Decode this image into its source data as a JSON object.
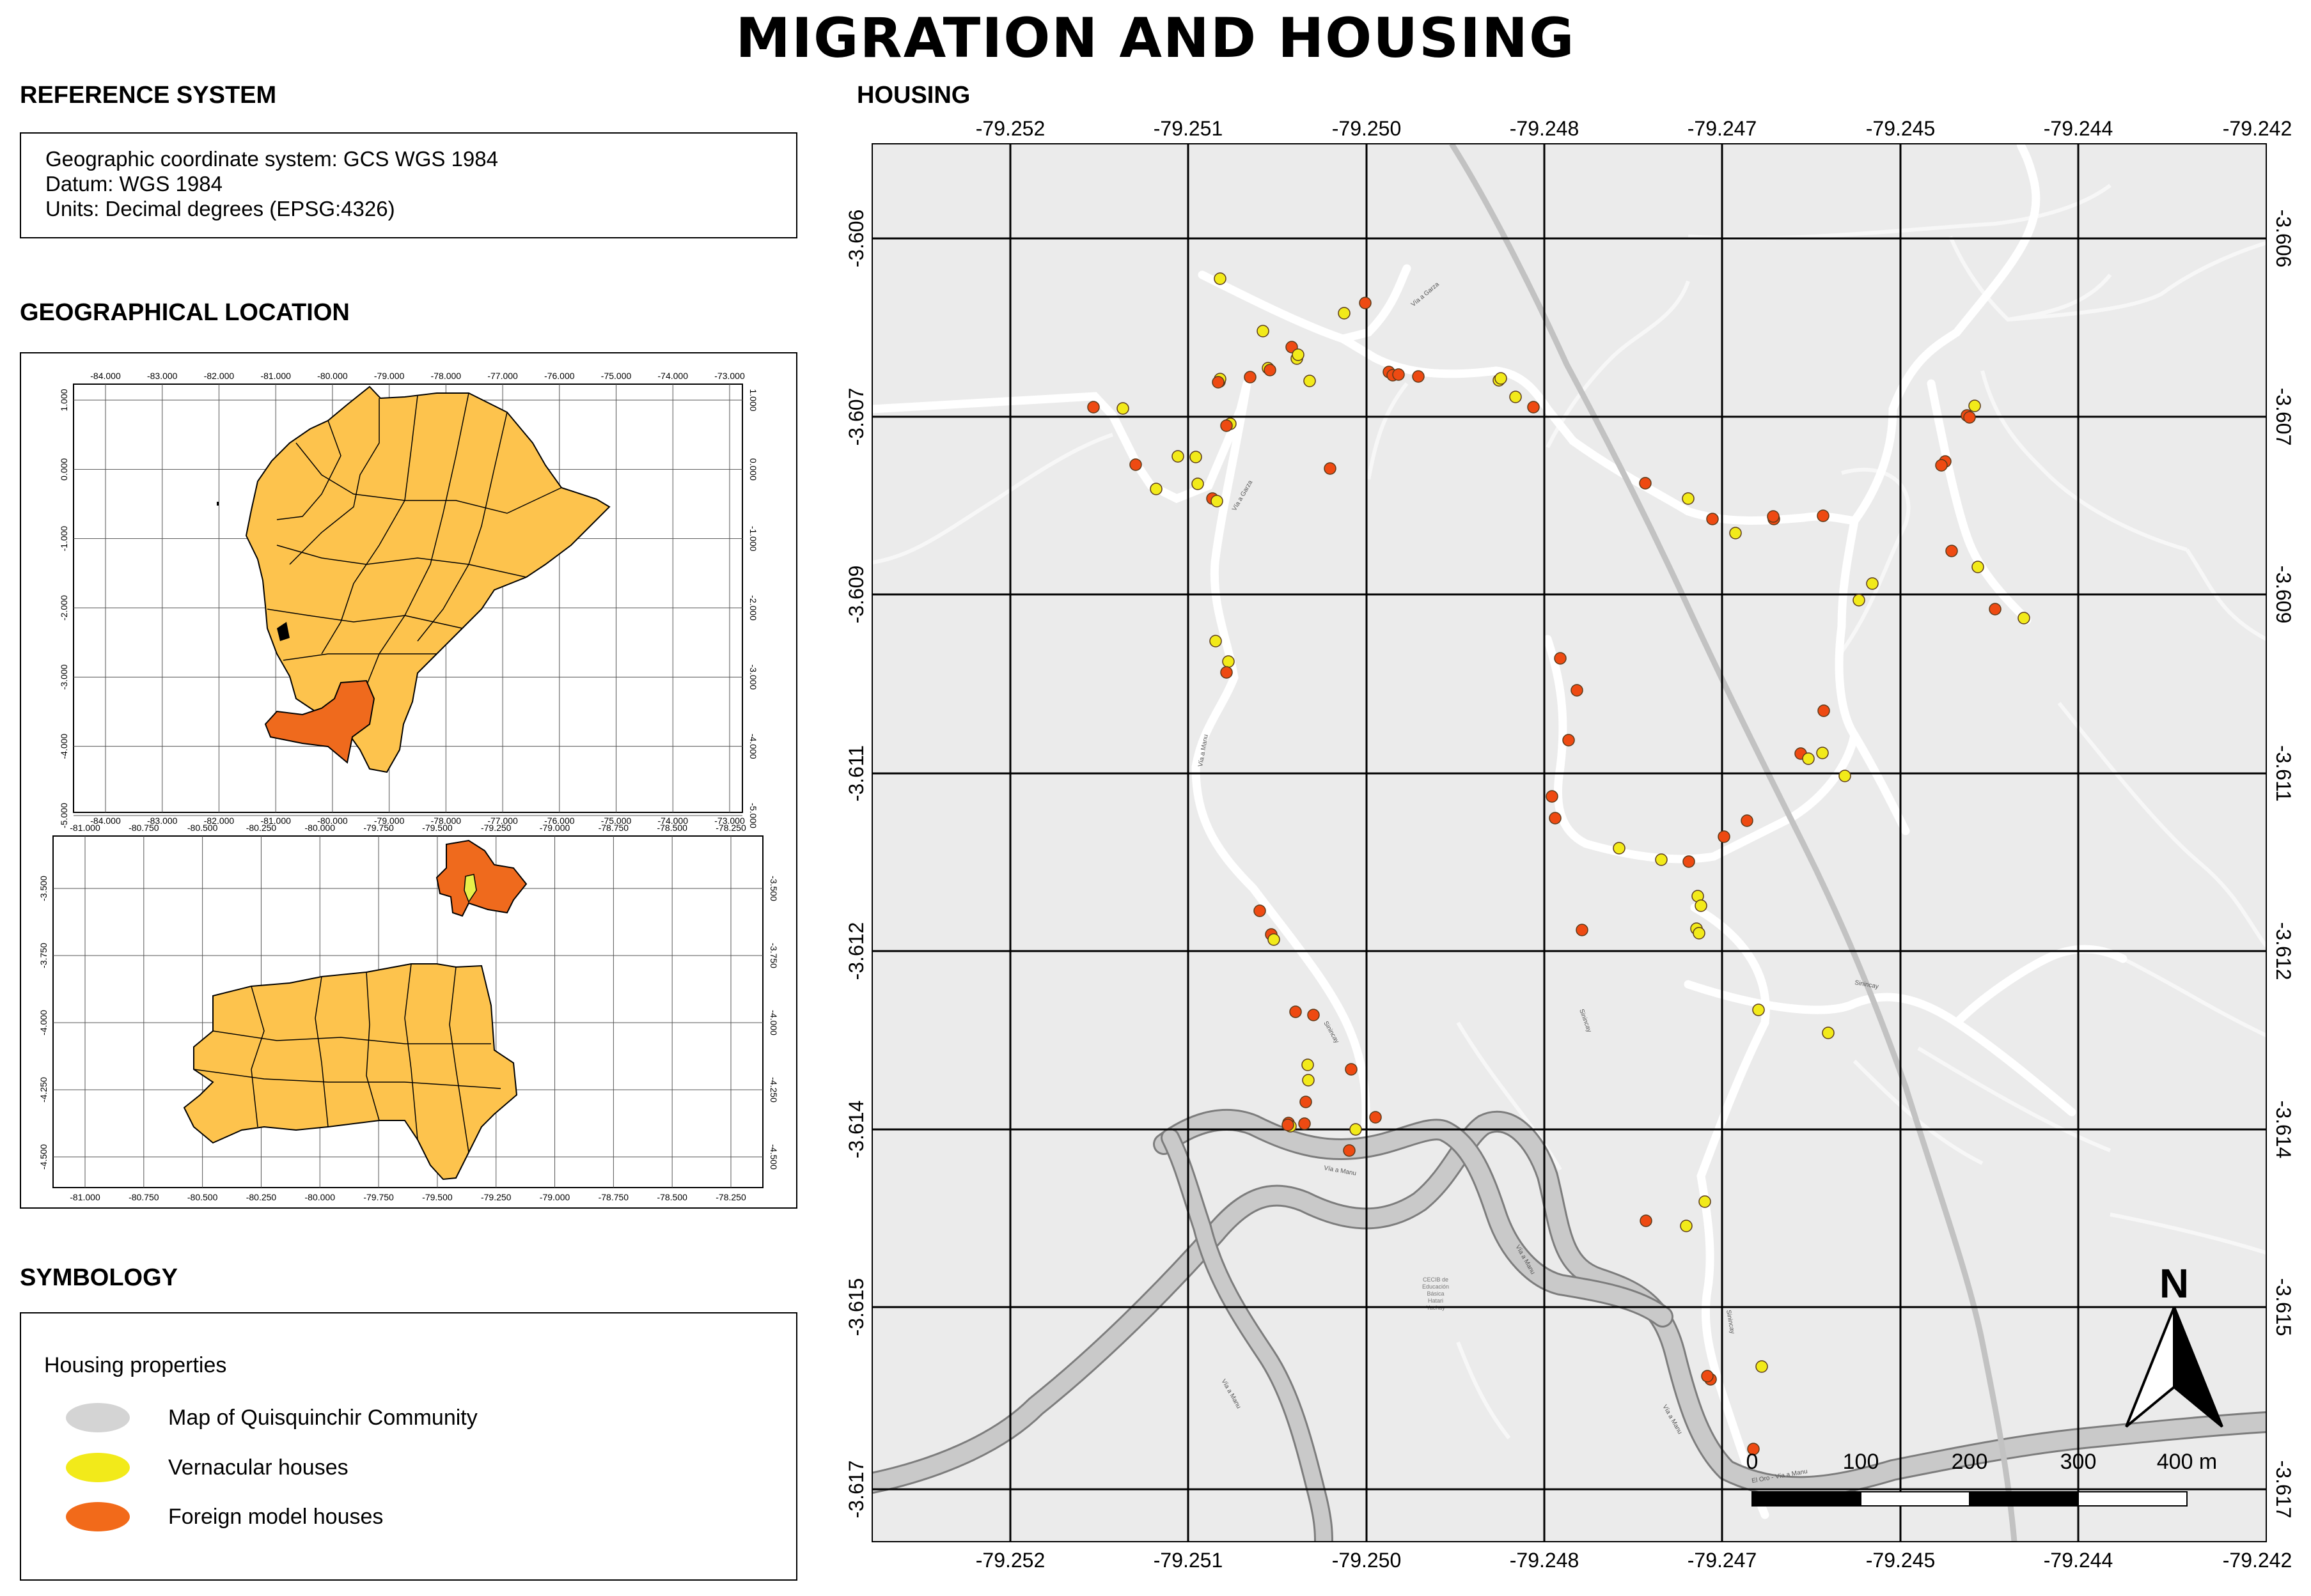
{
  "title": "MIGRATION AND HOUSING",
  "reference_system": {
    "heading": "REFERENCE SYSTEM",
    "lines": [
      "Geographic coordinate system: GCS WGS 1984",
      "Datum: WGS 1984",
      "Units: Decimal degrees (EPSG:4326)"
    ]
  },
  "geo_location": {
    "heading": "GEOGRAPHICAL LOCATION",
    "ecuador_x_ticks": [
      "-84.000",
      "-83.000",
      "-82.000",
      "-81.000",
      "-80.000",
      "-79.000",
      "-78.000",
      "-77.000",
      "-76.000",
      "-75.000",
      "-74.000",
      "-73.000"
    ],
    "ecuador_y_ticks": [
      "1.000",
      "0.000",
      "-1.000",
      "-2.000",
      "-3.000",
      "-4.000",
      "-5.000"
    ],
    "azuay_x_ticks": [
      "-81.000",
      "-80.750",
      "-80.500",
      "-80.250",
      "-80.000",
      "-79.750",
      "-79.500",
      "-79.250",
      "-79.000",
      "-78.750",
      "-78.500",
      "-78.250"
    ],
    "azuay_y_ticks": [
      "-3.500",
      "-3.750",
      "-4.000",
      "-4.250",
      "-4.500"
    ]
  },
  "symbology": {
    "heading": "SYMBOLOGY",
    "title": "Housing properties",
    "items": [
      {
        "label": "Map of Quisquinchir Community",
        "color": "#d4d4d4"
      },
      {
        "label": "Vernacular houses",
        "color": "#f2ea1a"
      },
      {
        "label": "Foreign model houses",
        "color": "#f26a1a"
      }
    ]
  },
  "housing_map": {
    "heading": "HOUSING",
    "x_ticks": [
      "-79.252",
      "-79.251",
      "-79.250",
      "-79.248",
      "-79.247",
      "-79.245",
      "-79.244",
      "-79.242"
    ],
    "y_ticks": [
      "-3.606",
      "-3.607",
      "-3.609",
      "-3.611",
      "-3.612",
      "-3.614",
      "-3.615",
      "-3.617"
    ],
    "north": "N",
    "scale_labels": [
      "0",
      "100",
      "200",
      "300",
      "400 m"
    ],
    "road_labels": [
      "Vía a Garza",
      "Vía a Garza",
      "Sinincay",
      "Sinincay",
      "Vía a Manu",
      "Vía a Manu",
      "Vía a Manu",
      "Vía a Manu",
      "Vía a Manu",
      "El Oro - Vía a Manu",
      "Sinincay",
      "Sinincay"
    ],
    "school_label": [
      "CECIB de",
      "Educación",
      "Básica",
      "Hatari",
      "Yachay"
    ],
    "colors": {
      "vernacular": "#f2ea1a",
      "foreign": "#ee4a12",
      "background": "#ebebeb",
      "grid": "#000000"
    }
  }
}
